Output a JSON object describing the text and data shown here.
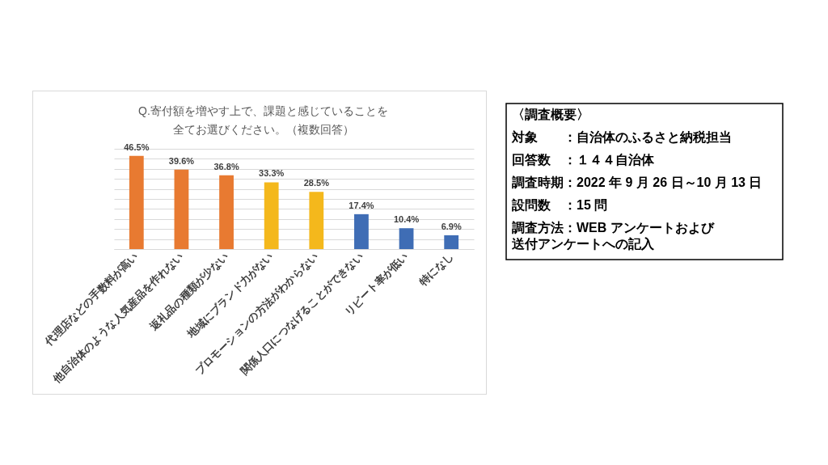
{
  "chart_data": [
    {
      "type": "bar",
      "title": "Q.寄付額を増やす上で、課題と感じていることを全てお選びください。（複数回答）",
      "categories": [
        "代理店などの手数料が高い",
        "他自治体のような人気産品を作れない",
        "返礼品の種類が少ない",
        "地域にブランド力がない",
        "プロモーションの方法がわからない",
        "関係人口につなげることができない",
        "リピート率が低い",
        "特になし"
      ],
      "values": [
        46.5,
        39.6,
        36.8,
        33.3,
        28.5,
        17.4,
        10.4,
        6.9
      ],
      "colors": [
        "#e87a31",
        "#e87a31",
        "#e87a31",
        "#f4b81c",
        "#f4b81c",
        "#3f6db5",
        "#3f6db5",
        "#3f6db5"
      ],
      "value_labels": [
        "46.5%",
        "39.6%",
        "36.8%",
        "33.3%",
        "28.5%",
        "17.4%",
        "10.4%",
        "6.9%"
      ],
      "grid": "y",
      "tick_labels": "x"
    },
    {
      "type": "other",
      "title": "〈調査概要〉",
      "annotations": [
        "対象　　：自治体のふるさと納税担当",
        "回答数　：１４４自治体",
        "調査時期：2022 年 9 月 26 日～10 月 13 日",
        "設問数　：15 問",
        "調査方法：WEB アンケートおよび",
        "　　　　　送付アンケートへの記入"
      ]
    }
  ]
}
